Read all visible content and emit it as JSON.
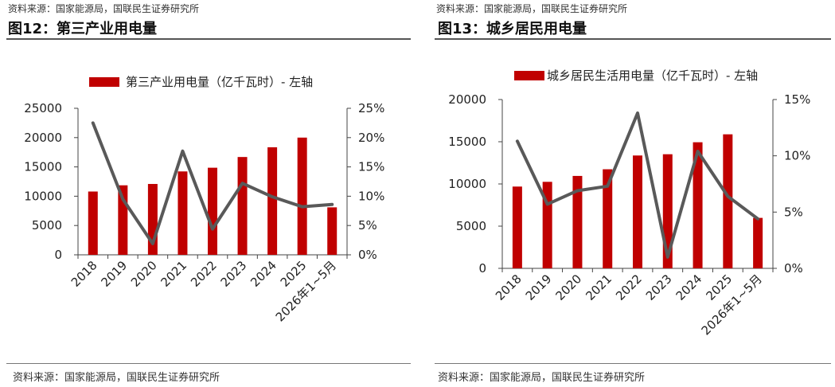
{
  "colors": {
    "bar": "#c00000",
    "line": "#595959",
    "axis": "#444444"
  },
  "panels": [
    {
      "source_top": "资料来源：国家能源局，国联民生证券研究所",
      "figure_title": "图12：第三产业用电量",
      "source_bottom": "资料来源：国家能源局，国联民生证券研究所"
    },
    {
      "source_top": "资料来源：国家能源局，国联民生证券研究所",
      "figure_title": "图13：城乡居民用电量",
      "source_bottom": "资料来源：国家能源局，国联民生证券研究所"
    }
  ],
  "chart_data": [
    {
      "type": "bar",
      "categories": [
        "2018",
        "2019",
        "2020",
        "2021",
        "2022",
        "2023",
        "2024",
        "2025",
        "2026年1~5月"
      ],
      "series": [
        {
          "name": "第三产业用电量（亿千瓦时）- 左轴",
          "kind": "bar",
          "axis": "left",
          "values": [
            10800,
            11860,
            12090,
            14230,
            14860,
            16690,
            18350,
            20000,
            8100
          ]
        },
        {
          "name": "",
          "kind": "line",
          "axis": "right",
          "values": [
            22.5,
            9.5,
            1.9,
            17.7,
            4.4,
            12.2,
            9.9,
            8.2,
            8.6
          ]
        }
      ],
      "ylim_left": [
        0,
        25000
      ],
      "yticks_left": [
        "0",
        "5000",
        "10000",
        "15000",
        "20000",
        "25000"
      ],
      "ylim_right": [
        0,
        25
      ],
      "yticks_right": [
        "0%",
        "5%",
        "10%",
        "15%",
        "20%",
        "25%"
      ],
      "legend_position": "top"
    },
    {
      "type": "bar",
      "categories": [
        "2018",
        "2019",
        "2020",
        "2021",
        "2022",
        "2023",
        "2024",
        "2025",
        "2026年1~5月"
      ],
      "series": [
        {
          "name": "城乡居民生活用电量（亿千瓦时）- 左轴",
          "kind": "bar",
          "axis": "left",
          "values": [
            9690,
            10250,
            10950,
            11740,
            13370,
            13520,
            14940,
            15880,
            5980
          ]
        },
        {
          "name": "",
          "kind": "line",
          "axis": "right",
          "values": [
            11.3,
            5.7,
            6.9,
            7.3,
            13.8,
            1.0,
            10.4,
            6.4,
            4.4
          ]
        }
      ],
      "ylim_left": [
        0,
        20000
      ],
      "yticks_left": [
        "0",
        "5000",
        "10000",
        "15000",
        "20000"
      ],
      "ylim_right": [
        0,
        15
      ],
      "yticks_right": [
        "0%",
        "5%",
        "10%",
        "15%"
      ],
      "legend_position": "top"
    }
  ]
}
